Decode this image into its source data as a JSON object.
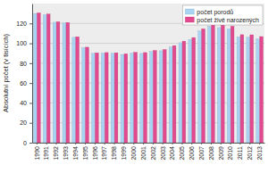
{
  "chart_data": {
    "type": "bar",
    "y_label": "Absolutní počet (v tisících)",
    "categories": [
      "1990",
      "1991",
      "1992",
      "1993",
      "1994",
      "1995",
      "1996",
      "1997",
      "1998",
      "1999",
      "2000",
      "2001",
      "2002",
      "2003",
      "2004",
      "2005",
      "2006",
      "2007",
      "2008",
      "2009",
      "2010",
      "2011",
      "2012",
      "2013"
    ],
    "series": [
      {
        "name": "počet porodů",
        "color": "#a9d3f2",
        "values": [
          130.0,
          128.8,
          121.2,
          120.5,
          106.0,
          95.6,
          89.9,
          90.1,
          89.9,
          88.8,
          90.1,
          89.8,
          91.7,
          92.5,
          96.2,
          100.6,
          104.0,
          112.4,
          117.1,
          115.8,
          114.6,
          106.3,
          106.2,
          104.4
        ]
      },
      {
        "name": "počet živě narozených",
        "color": "#e2498f",
        "values": [
          130.6,
          129.4,
          121.7,
          121.0,
          106.6,
          96.1,
          90.4,
          90.7,
          90.5,
          89.5,
          90.9,
          90.7,
          92.8,
          93.7,
          97.7,
          102.2,
          105.8,
          114.6,
          119.6,
          118.3,
          117.2,
          108.7,
          108.6,
          106.8
        ]
      }
    ],
    "ylim": [
      0,
      140
    ],
    "yticks": [
      0,
      20,
      40,
      60,
      80,
      100,
      120
    ],
    "grid": true,
    "legend": "upper right"
  }
}
